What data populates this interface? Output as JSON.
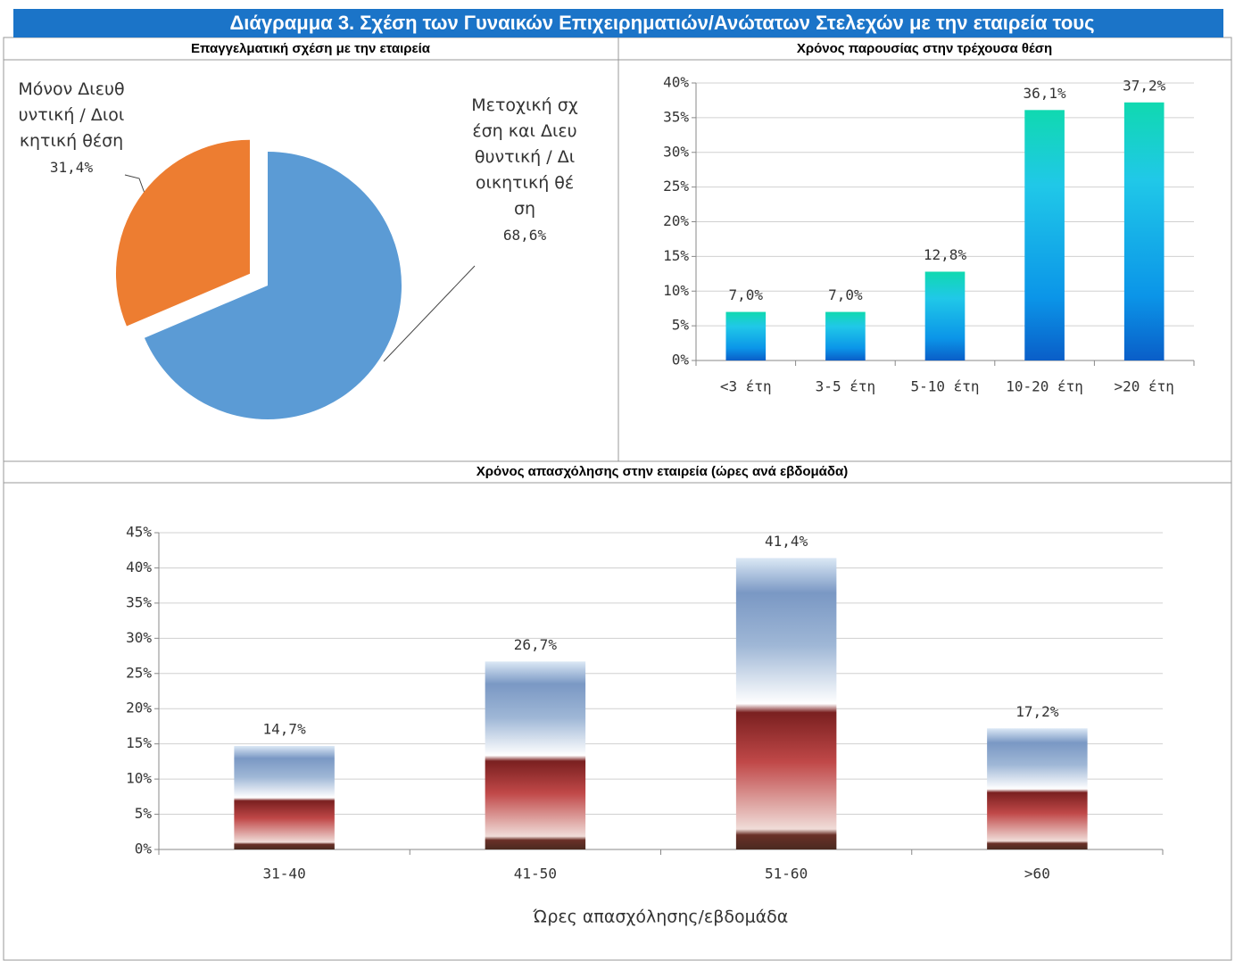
{
  "title": "Διάγραμμα 3. Σχέση των Γυναικών Επιχειρηματιών/Ανώτατων Στελεχών με την εταιρεία τους",
  "chart_data": [
    {
      "type": "pie",
      "title": "Επαγγελματική σχέση με την εταιρεία",
      "categories": [
        "Μετοχική σχέση και Διευθυντική / Διοικητική θέση",
        "Μόνον Διευθυντική / Διοικητική θέση"
      ],
      "values": [
        68.6,
        31.4
      ],
      "value_labels": [
        "68,6%",
        "31,4%"
      ],
      "colors": [
        "#5b9bd5",
        "#ed7d31"
      ]
    },
    {
      "type": "bar",
      "title": "Χρόνος παρουσίας στην τρέχουσα θέση",
      "categories": [
        "<3 έτη",
        "3-5 έτη",
        "5-10 έτη",
        "10-20 έτη",
        ">20 έτη"
      ],
      "values": [
        7.0,
        7.0,
        12.8,
        36.1,
        37.2
      ],
      "value_labels": [
        "7,0%",
        "7,0%",
        "12,8%",
        "36,1%",
        "37,2%"
      ],
      "ylim": [
        0,
        40
      ],
      "yticks": [
        {
          "value": 0,
          "label": "0%"
        },
        {
          "value": 5,
          "label": "5%"
        },
        {
          "value": 10,
          "label": "10%"
        },
        {
          "value": 15,
          "label": "15%"
        },
        {
          "value": 20,
          "label": "20%"
        },
        {
          "value": 25,
          "label": "25%"
        },
        {
          "value": 30,
          "label": "30%"
        },
        {
          "value": 35,
          "label": "35%"
        },
        {
          "value": 40,
          "label": "40%"
        }
      ],
      "grid": true
    },
    {
      "type": "bar",
      "title": "Χρόνος απασχόλησης στην εταιρεία (ώρες ανά εβδομάδα)",
      "categories": [
        "31-40",
        "41-50",
        "51-60",
        ">60"
      ],
      "values": [
        14.7,
        26.7,
        41.4,
        17.2
      ],
      "value_labels": [
        "14,7%",
        "26,7%",
        "41,4%",
        "17,2%"
      ],
      "xlabel": "Ώρες απασχόλησης/εβδομάδα",
      "ylim": [
        0,
        45
      ],
      "yticks": [
        {
          "value": 0,
          "label": "0%"
        },
        {
          "value": 5,
          "label": "5%"
        },
        {
          "value": 10,
          "label": "10%"
        },
        {
          "value": 15,
          "label": "15%"
        },
        {
          "value": 20,
          "label": "20%"
        },
        {
          "value": 25,
          "label": "25%"
        },
        {
          "value": 30,
          "label": "30%"
        },
        {
          "value": 35,
          "label": "35%"
        },
        {
          "value": 40,
          "label": "40%"
        },
        {
          "value": 45,
          "label": "45%"
        }
      ],
      "grid": true
    }
  ]
}
